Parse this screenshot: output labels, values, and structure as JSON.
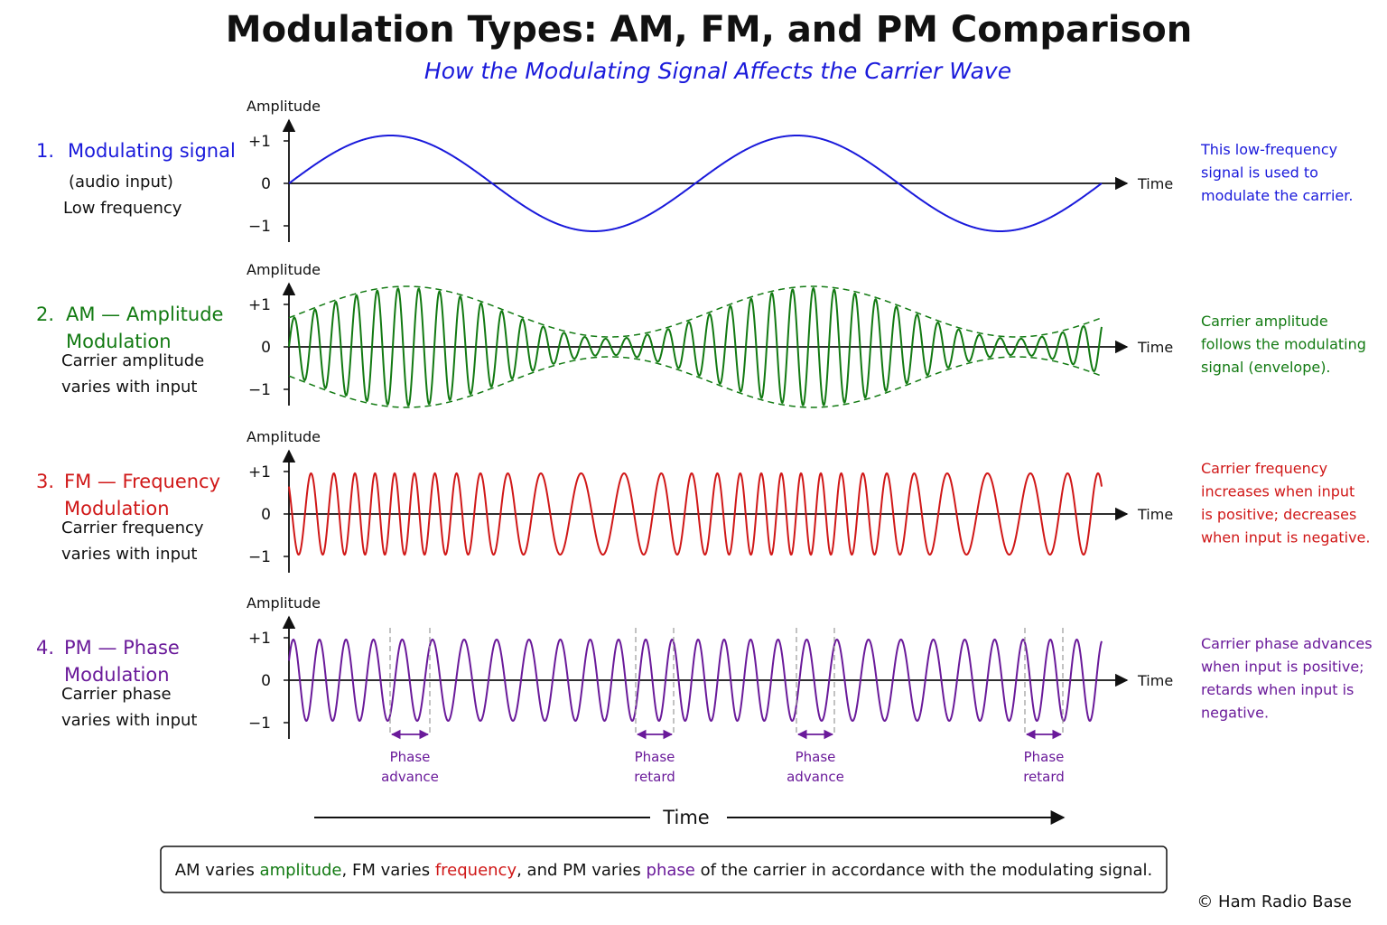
{
  "header": {
    "title": "Modulation Types: AM, FM, and PM Comparison",
    "subtitle": "How the Modulating Signal Affects the Carrier Wave"
  },
  "panels": [
    {
      "number": "1.",
      "title_lines": [
        "Modulating signal"
      ],
      "description_lines": [
        "(audio input)",
        "Low frequency"
      ],
      "y_axis_label": "Amplitude",
      "ticks": [
        "+1",
        "0",
        "−1"
      ],
      "x_axis_label": "Time",
      "note_lines": [
        "This low-frequency",
        "signal is used to",
        "modulate the carrier."
      ]
    },
    {
      "number": "2.",
      "title_lines": [
        "AM — Amplitude",
        "Modulation"
      ],
      "description_lines": [
        "Carrier amplitude",
        "varies with input"
      ],
      "y_axis_label": "Amplitude",
      "ticks": [
        "+1",
        "0",
        "−1"
      ],
      "x_axis_label": "Time",
      "note_lines": [
        "Carrier amplitude",
        "follows the modulating",
        "signal (envelope)."
      ]
    },
    {
      "number": "3.",
      "title_lines": [
        "FM — Frequency",
        "Modulation"
      ],
      "description_lines": [
        "Carrier frequency",
        "varies with input"
      ],
      "y_axis_label": "Amplitude",
      "ticks": [
        "+1",
        "0",
        "−1"
      ],
      "x_axis_label": "Time",
      "note_lines": [
        "Carrier frequency",
        "increases when input",
        "is positive; decreases",
        "when input is negative."
      ]
    },
    {
      "number": "4.",
      "title_lines": [
        "PM — Phase",
        "Modulation"
      ],
      "description_lines": [
        "Carrier phase",
        "varies with input"
      ],
      "y_axis_label": "Amplitude",
      "ticks": [
        "+1",
        "0",
        "−1"
      ],
      "x_axis_label": "Time",
      "note_lines": [
        "Carrier phase advances",
        "when input is positive;",
        "retards when input is",
        "negative."
      ],
      "annotations": [
        [
          "Phase",
          "advance"
        ],
        [
          "Phase",
          "retard"
        ],
        [
          "Phase",
          "advance"
        ],
        [
          "Phase",
          "retard"
        ]
      ]
    }
  ],
  "time_label": "Time",
  "footer": {
    "summary_parts": [
      "AM varies ",
      "amplitude",
      ", FM varies ",
      "frequency",
      ", and PM varies ",
      "phase",
      " of the carrier in accordance with the modulating signal."
    ],
    "credit": "© Ham Radio Base"
  }
}
